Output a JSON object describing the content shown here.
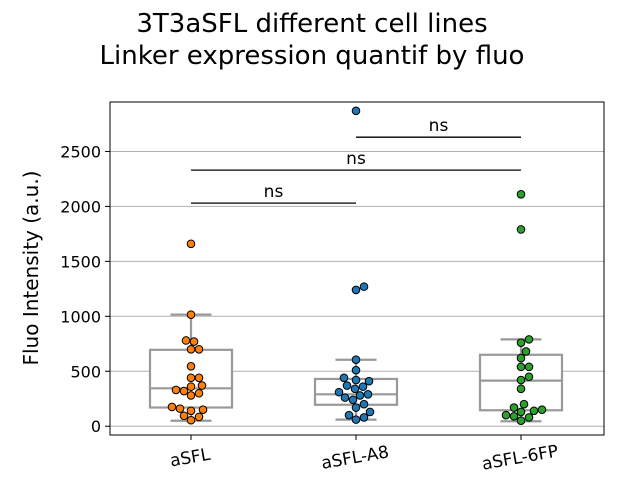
{
  "chart_data": {
    "type": "box-swarm",
    "title": [
      "3T3aSFL different cell lines",
      "Linker expression quantif by fluo"
    ],
    "xlabel": "",
    "ylabel": "Fluo Intensity (a.u.)",
    "ylim": [
      -80,
      2950
    ],
    "yticks": [
      0,
      500,
      1000,
      1500,
      2000,
      2500
    ],
    "grid": "y",
    "categories": [
      "aSFL",
      "aSFL-A8",
      "aSFL-6FP"
    ],
    "series": [
      {
        "category": "aSFL",
        "color": "#ff7f0e",
        "box": {
          "whisker_low": 50,
          "q1": 170,
          "median": 345,
          "q3": 695,
          "whisker_high": 1015
        },
        "points": [
          1660,
          1015,
          780,
          770,
          700,
          700,
          545,
          440,
          440,
          370,
          360,
          330,
          320,
          300,
          280,
          175,
          160,
          150,
          140,
          95,
          85,
          55
        ]
      },
      {
        "category": "aSFL-A8",
        "color": "#1f77b4",
        "box": {
          "whisker_low": 60,
          "q1": 195,
          "median": 290,
          "q3": 430,
          "whisker_high": 605
        },
        "points": [
          2870,
          1270,
          1240,
          605,
          510,
          440,
          420,
          410,
          370,
          360,
          340,
          310,
          290,
          280,
          260,
          240,
          200,
          170,
          130,
          100,
          80,
          60
        ]
      },
      {
        "category": "aSFL-6FP",
        "color": "#2ca02c",
        "box": {
          "whisker_low": 45,
          "q1": 145,
          "median": 415,
          "q3": 650,
          "whisker_high": 790
        },
        "points": [
          2110,
          1790,
          790,
          760,
          680,
          620,
          540,
          540,
          450,
          420,
          340,
          200,
          170,
          150,
          140,
          130,
          100,
          90,
          80,
          50
        ]
      }
    ],
    "significance": [
      {
        "from": "aSFL",
        "to": "aSFL-A8",
        "y": 2030,
        "label": "ns"
      },
      {
        "from": "aSFL",
        "to": "aSFL-6FP",
        "y": 2330,
        "label": "ns"
      },
      {
        "from": "aSFL-A8",
        "to": "aSFL-6FP",
        "y": 2630,
        "label": "ns"
      }
    ]
  }
}
